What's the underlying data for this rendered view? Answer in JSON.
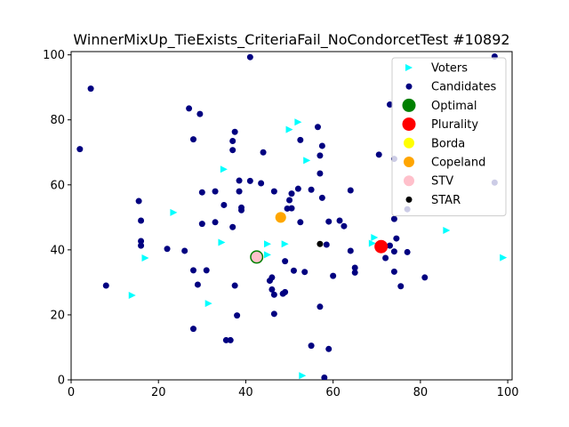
{
  "chart_data": {
    "type": "scatter",
    "title": "WinnerMixUp_TieExists_CriteriaFail_NoCondorcetTest #10892",
    "xlim": [
      0,
      101
    ],
    "ylim": [
      0,
      101
    ],
    "xticks": [
      0,
      20,
      40,
      60,
      80,
      100
    ],
    "yticks": [
      0,
      20,
      40,
      60,
      80,
      100
    ],
    "grid": false,
    "legend_position": "top-right",
    "series": [
      {
        "name": "Voters",
        "marker": "triangle-right",
        "color": "#00ffff",
        "points": [
          [
            52,
            79.3
          ],
          [
            50,
            77
          ],
          [
            54,
            67.5
          ],
          [
            35,
            64.8
          ],
          [
            23.5,
            51.5
          ],
          [
            34.5,
            42.3
          ],
          [
            45,
            41.8
          ],
          [
            49,
            41.8
          ],
          [
            17,
            37.5
          ],
          [
            45,
            38.5
          ],
          [
            14,
            26
          ],
          [
            31.5,
            23.5
          ],
          [
            69,
            42
          ],
          [
            69.5,
            43.8
          ],
          [
            86,
            46
          ],
          [
            99,
            37.6
          ],
          [
            53,
            1.3
          ]
        ]
      },
      {
        "name": "Candidates",
        "marker": "circle",
        "color": "#000080",
        "points": [
          [
            41,
            99.3
          ],
          [
            97,
            99.5
          ],
          [
            4.5,
            89.6
          ],
          [
            27,
            83.5
          ],
          [
            29.5,
            81.8
          ],
          [
            73,
            84.7
          ],
          [
            2,
            71
          ],
          [
            28,
            74
          ],
          [
            37.5,
            76.3
          ],
          [
            37,
            73.5
          ],
          [
            37,
            70.7
          ],
          [
            44,
            70
          ],
          [
            56.5,
            77.8
          ],
          [
            57.5,
            72
          ],
          [
            57,
            69
          ],
          [
            52.5,
            73.8
          ],
          [
            57,
            63.5
          ],
          [
            70.5,
            69.3
          ],
          [
            74,
            68
          ],
          [
            38.5,
            61.3
          ],
          [
            41,
            61.2
          ],
          [
            43.5,
            60.5
          ],
          [
            30,
            57.7
          ],
          [
            33,
            58
          ],
          [
            38.5,
            58
          ],
          [
            46.5,
            58
          ],
          [
            50.5,
            57.3
          ],
          [
            52,
            58.8
          ],
          [
            55,
            58.5
          ],
          [
            57.5,
            56
          ],
          [
            50,
            55.3
          ],
          [
            64,
            58.3
          ],
          [
            49.5,
            52.7
          ],
          [
            50.5,
            52.8
          ],
          [
            35,
            53.8
          ],
          [
            39,
            53
          ],
          [
            39,
            52.2
          ],
          [
            15.5,
            55
          ],
          [
            16,
            49
          ],
          [
            30,
            48
          ],
          [
            33,
            48.5
          ],
          [
            37,
            47
          ],
          [
            52.5,
            48.5
          ],
          [
            59,
            48.7
          ],
          [
            61.5,
            49
          ],
          [
            62.5,
            47.3
          ],
          [
            74,
            49.5
          ],
          [
            77,
            52.5
          ],
          [
            16,
            42.7
          ],
          [
            16,
            41.3
          ],
          [
            22,
            40.3
          ],
          [
            26,
            39.7
          ],
          [
            58.5,
            41.6
          ],
          [
            64,
            39.7
          ],
          [
            72,
            37.5
          ],
          [
            73,
            41.3
          ],
          [
            74.5,
            43.5
          ],
          [
            74,
            39.5
          ],
          [
            77,
            39.3
          ],
          [
            49,
            36.5
          ],
          [
            28,
            33.7
          ],
          [
            31,
            33.7
          ],
          [
            51,
            33.6
          ],
          [
            53.5,
            33.2
          ],
          [
            60,
            32
          ],
          [
            65,
            34.5
          ],
          [
            65,
            33
          ],
          [
            74,
            33.3
          ],
          [
            81,
            31.5
          ],
          [
            46,
            31.5
          ],
          [
            45.5,
            30.5
          ],
          [
            8,
            29
          ],
          [
            29,
            29.3
          ],
          [
            37.5,
            29
          ],
          [
            46,
            27.8
          ],
          [
            46.5,
            26.2
          ],
          [
            48.5,
            26.5
          ],
          [
            49,
            27
          ],
          [
            75.5,
            28.8
          ],
          [
            57,
            22.5
          ],
          [
            38,
            19.8
          ],
          [
            46.5,
            20.3
          ],
          [
            28,
            15.7
          ],
          [
            35.5,
            12.2
          ],
          [
            36.5,
            12.2
          ],
          [
            55,
            10.5
          ],
          [
            59,
            9.5
          ],
          [
            58,
            0.7
          ],
          [
            97,
            60.7
          ]
        ]
      },
      {
        "name": "Optimal",
        "marker": "circle-large",
        "color": "#008000",
        "points": [
          [
            42.5,
            37.8
          ]
        ]
      },
      {
        "name": "Plurality",
        "marker": "circle-large",
        "color": "#ff0000",
        "points": [
          [
            71,
            41
          ]
        ]
      },
      {
        "name": "Borda",
        "marker": "circle-medium",
        "color": "#ffff00",
        "points": [
          [
            48,
            50
          ]
        ]
      },
      {
        "name": "Copeland",
        "marker": "circle-medium",
        "color": "#ffa500",
        "points": [
          [
            48,
            50
          ]
        ]
      },
      {
        "name": "STV",
        "marker": "circle-medium",
        "color": "#ffc0cb",
        "points": [
          [
            42.5,
            37.8
          ]
        ]
      },
      {
        "name": "STAR",
        "marker": "circle-small",
        "color": "#000000",
        "points": [
          [
            57,
            41.8
          ]
        ]
      }
    ]
  }
}
